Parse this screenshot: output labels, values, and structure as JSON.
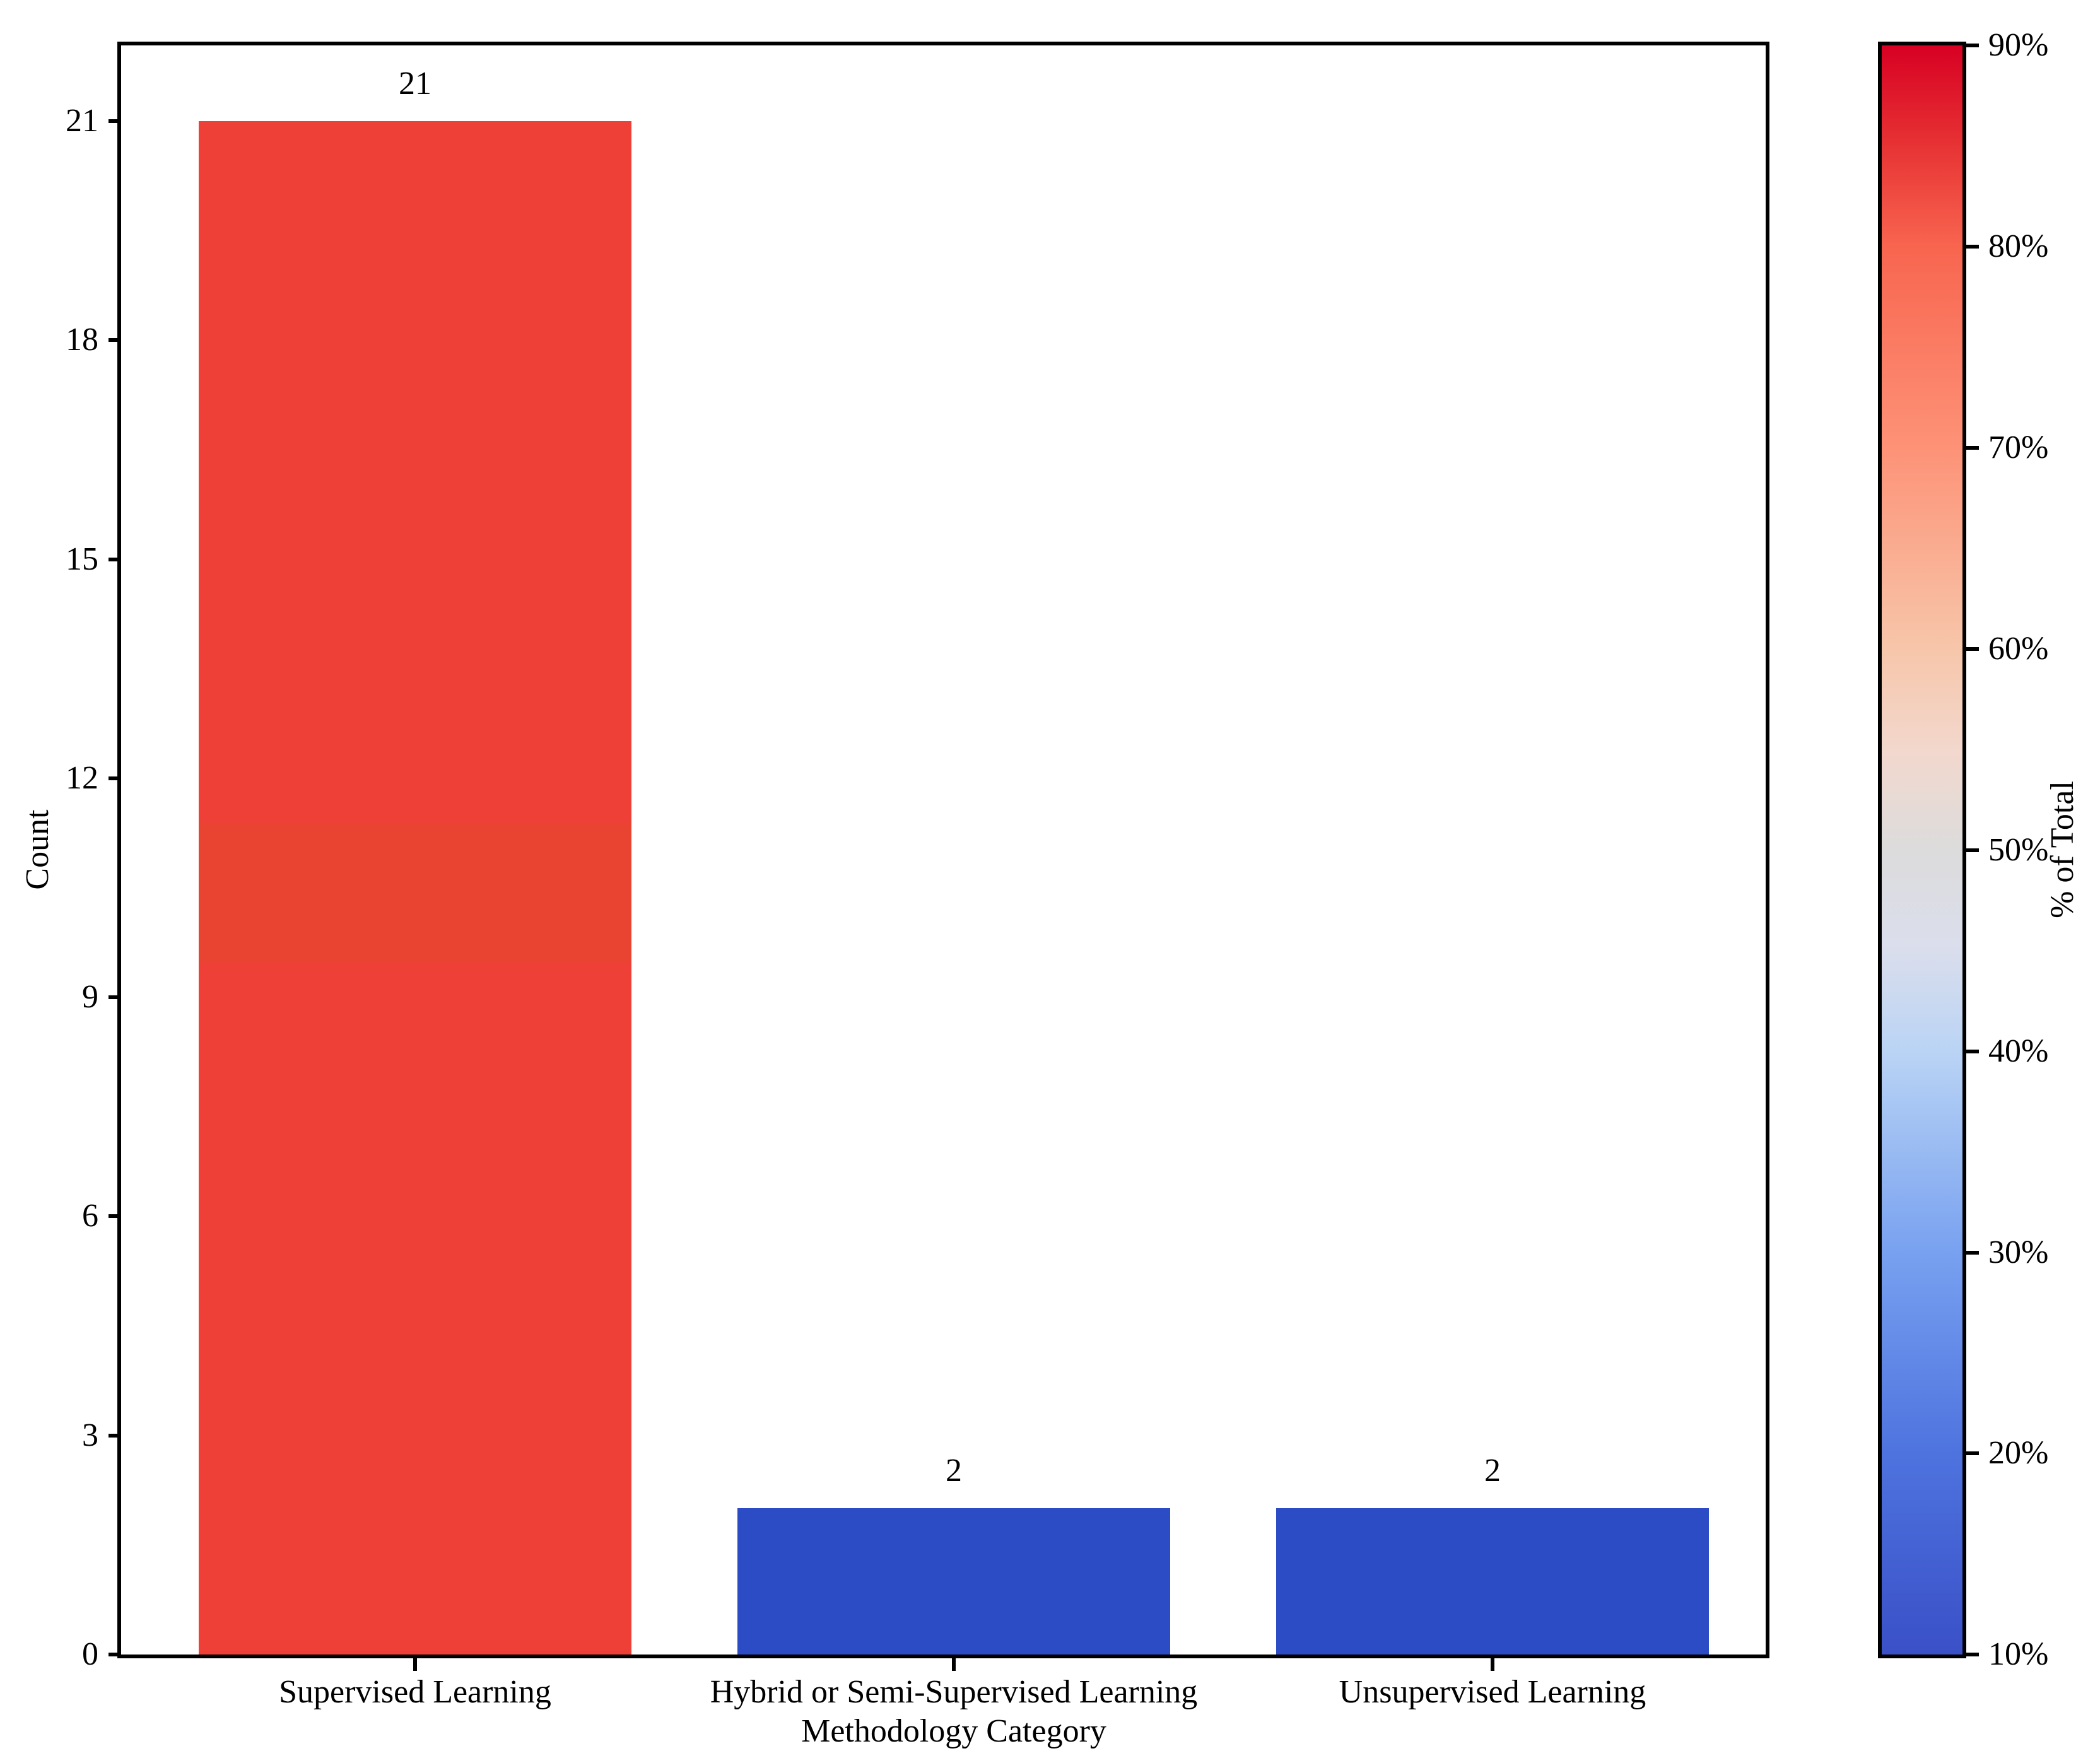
{
  "chart_data": {
    "type": "bar",
    "title": "",
    "categories": [
      "Supervised Learning",
      "Hybrid or Semi-Supervised Learning",
      "Unsupervised Learning"
    ],
    "values": [
      21,
      2,
      2
    ],
    "value_labels": [
      "21",
      "2",
      "2"
    ],
    "xlabel": "Methodology Category",
    "ylabel": "Count",
    "ylim": [
      0,
      22
    ],
    "yticks": [
      0,
      3,
      6,
      9,
      12,
      15,
      18,
      21
    ],
    "ytick_labels": [
      "0",
      "3",
      "6",
      "9",
      "12",
      "15",
      "18",
      "21"
    ],
    "grid": false,
    "legend": "none",
    "bar_colors": [
      "#EE4036",
      "#2C4CC5",
      "#2C4CC5"
    ],
    "supervised_band_color": "#E94331",
    "colorbar": {
      "label": "% of Total",
      "orientation": "vertical",
      "range": [
        "10%",
        "90%"
      ],
      "tick_labels": [
        "90%",
        "80%",
        "70%",
        "60%",
        "50%",
        "40%",
        "30%",
        "20%",
        "10%"
      ],
      "gradient_stops": [
        {
          "pos": 0,
          "color": "#D80023"
        },
        {
          "pos": 6,
          "color": "#E63133"
        },
        {
          "pos": 12.5,
          "color": "#F8654F"
        },
        {
          "pos": 25,
          "color": "#FD9277"
        },
        {
          "pos": 37.5,
          "color": "#F7C6AA"
        },
        {
          "pos": 44,
          "color": "#F2D8CE"
        },
        {
          "pos": 50,
          "color": "#DCDCDC"
        },
        {
          "pos": 56,
          "color": "#DBDEEC"
        },
        {
          "pos": 62.5,
          "color": "#BAD4F5"
        },
        {
          "pos": 75,
          "color": "#78A1F0"
        },
        {
          "pos": 87.5,
          "color": "#4E73DF"
        },
        {
          "pos": 100,
          "color": "#3A50C7"
        }
      ]
    }
  }
}
